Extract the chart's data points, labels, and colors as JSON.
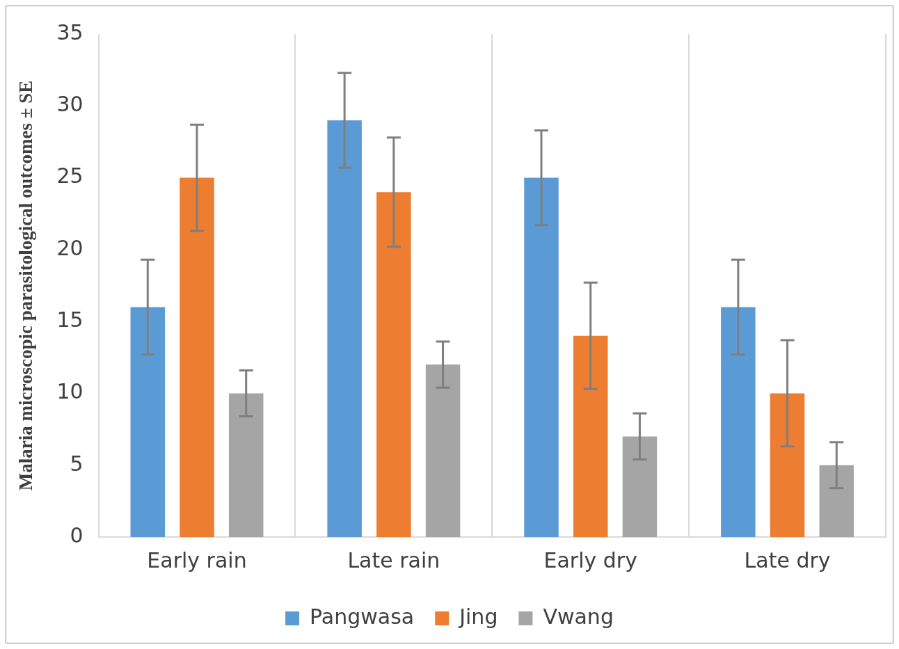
{
  "chart_data": {
    "type": "bar",
    "ylabel": "Malaria microscopic parasitological outcomes ± SE",
    "categories": [
      "Early rain",
      "Late rain",
      "Early dry",
      "Late dry"
    ],
    "series": [
      {
        "name": "Pangwasa",
        "color": "#5b9bd5",
        "values": [
          16,
          29,
          25,
          16
        ],
        "errors": [
          3.3,
          3.3,
          3.3,
          3.3
        ]
      },
      {
        "name": "Jing",
        "color": "#ed7d31",
        "values": [
          25,
          24,
          14,
          10
        ],
        "errors": [
          3.7,
          3.8,
          3.7,
          3.7
        ]
      },
      {
        "name": "Vwang",
        "color": "#a5a5a5",
        "values": [
          10,
          12,
          7,
          5
        ],
        "errors": [
          1.6,
          1.6,
          1.6,
          1.6
        ]
      }
    ],
    "ylim": [
      0,
      35
    ],
    "yticks": [
      0,
      5,
      10,
      15,
      20,
      25,
      30,
      35
    ],
    "grid": "x",
    "legend": "bottom"
  }
}
